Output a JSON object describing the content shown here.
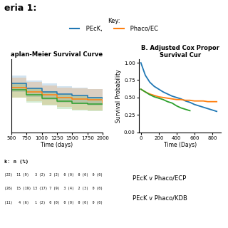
{
  "title": "eria 1:",
  "legend_title": "Key:",
  "chart_data": [
    {
      "type": "step",
      "title": "aplan-Meier Survival Curve",
      "x_label": "Time (days)",
      "x": [
        500,
        750,
        1000,
        1250,
        1500,
        1750,
        2000
      ],
      "xlim": [
        500,
        2000
      ],
      "xticks": [
        500,
        750,
        1000,
        1250,
        1500,
        1750,
        2000
      ],
      "ylim": [
        0.0,
        0.9
      ],
      "tick_labels": "x",
      "series": [
        {
          "name": " PEcK,",
          "values": [
            0.6,
            0.54,
            0.5,
            0.47,
            0.45,
            0.43,
            0.42
          ],
          "lower": [
            0.5,
            0.44,
            0.4,
            0.37,
            0.35,
            0.33,
            0.32
          ],
          "upper": [
            0.7,
            0.64,
            0.6,
            0.57,
            0.55,
            0.53,
            0.52
          ]
        },
        {
          "name": " Phaco/EC",
          "values": [
            0.55,
            0.5,
            0.46,
            0.43,
            0.41,
            0.4,
            0.37
          ],
          "lower": [
            0.43,
            0.38,
            0.34,
            0.31,
            0.28,
            0.27,
            0.24
          ],
          "upper": [
            0.67,
            0.62,
            0.58,
            0.55,
            0.54,
            0.53,
            0.5
          ]
        },
        {
          "values": [
            0.52,
            0.46,
            0.42,
            0.38,
            0.36,
            0.35,
            0.35
          ],
          "lower": [
            0.43,
            0.37,
            0.33,
            0.29,
            0.27,
            0.26,
            0.26
          ],
          "upper": [
            0.61,
            0.55,
            0.51,
            0.47,
            0.45,
            0.44,
            0.44
          ]
        }
      ],
      "table": {
        "header": "k: n (%)",
        "rows": [
          "(22)  11 (9)   3 (2)  2 (2)  0 (0)  0 (0)  0 (0)",
          "(26)  15 (19) 13 (17) 7 (9)  3 (4)  2 (3)  0 (0)",
          "(11)   4 (6)   1 (2)  0 (0)  0 (0)  0 (0)  0 (0)"
        ]
      }
    },
    {
      "type": "line",
      "title": "B. Adjusted Cox Propor\nSurvival Cur",
      "x_label": "Time (Days)",
      "y_label": "Survival Probability",
      "xlim": [
        -20,
        900
      ],
      "xticks": [
        0,
        200,
        400,
        600,
        800
      ],
      "ylim": [
        0.0,
        1.05
      ],
      "yticks": [
        {
          "value": 0.0,
          "label": "0.00"
        },
        0.25,
        {
          "value": 0.5,
          "label": "0.50"
        },
        0.75,
        {
          "value": 1.0,
          "label": "1.00"
        }
      ],
      "series": [
        {
          "name": " PEcK,",
          "x": [
            0,
            50,
            100,
            150,
            200,
            250,
            300,
            350,
            400,
            450,
            500,
            550,
            600,
            650,
            700,
            750,
            800,
            850
          ],
          "values": [
            1.0,
            0.82,
            0.72,
            0.66,
            0.62,
            0.58,
            0.55,
            0.52,
            0.5,
            0.48,
            0.45,
            0.43,
            0.4,
            0.38,
            0.36,
            0.34,
            0.32,
            0.3
          ]
        },
        {
          "name": " Phaco/EC",
          "x": [
            0,
            50,
            100,
            150,
            200,
            250,
            300,
            350,
            400,
            450,
            500,
            550,
            600,
            650,
            700,
            750,
            800,
            850
          ],
          "values": [
            0.62,
            0.58,
            0.55,
            0.53,
            0.51,
            0.5,
            0.49,
            0.48,
            0.47,
            0.47,
            0.46,
            0.46,
            0.45,
            0.45,
            0.45,
            0.44,
            0.44,
            0.44
          ]
        },
        {
          "x": [
            0,
            50,
            100,
            150,
            200,
            250,
            300,
            350,
            400,
            450,
            500,
            550
          ],
          "values": [
            0.62,
            0.58,
            0.54,
            0.51,
            0.49,
            0.47,
            0.44,
            0.42,
            0.38,
            0.35,
            0.33,
            0.31
          ]
        }
      ],
      "annotations": [
        "PEcK v Phaco/ECP",
        "PEcK v Phaco/KDB"
      ]
    }
  ]
}
